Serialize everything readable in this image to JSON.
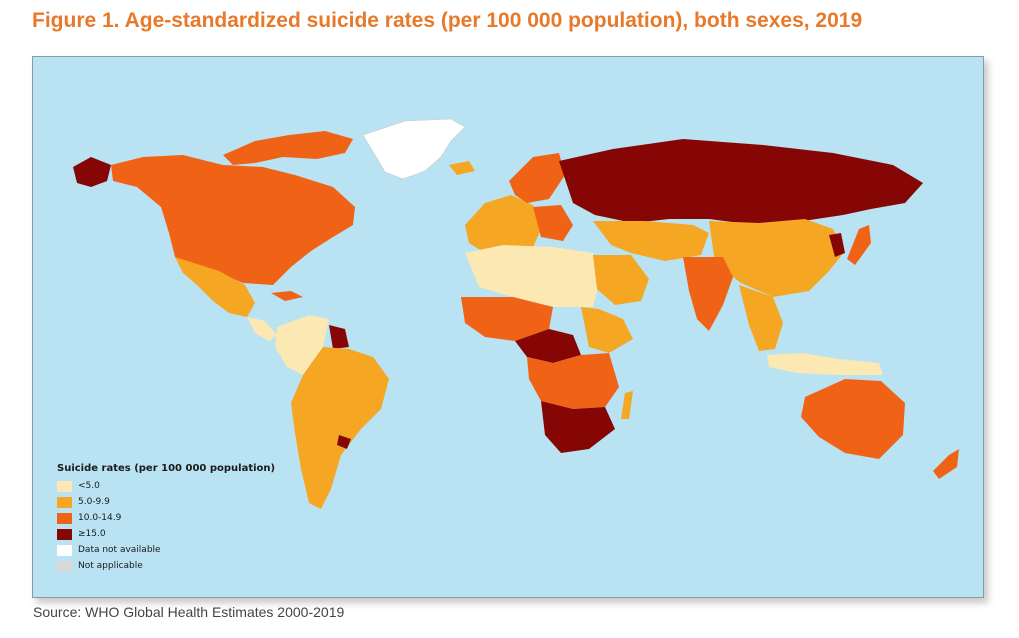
{
  "title": "Figure 1. Age-standardized suicide rates (per 100 000 population), both sexes, 2019",
  "source": "Source: WHO Global Health Estimates 2000-2019",
  "colors": {
    "ocean": "#b9e3f2",
    "lt5": "#fbe8b2",
    "r5_9": "#f5a623",
    "r10_14": "#f06317",
    "ge15": "#860505",
    "na": "#ffffff",
    "notapp": "#d9d9d9",
    "title": "#e8792a"
  },
  "legend": {
    "title": "Suicide rates (per 100 000 population)",
    "items": [
      {
        "label": "<5.0",
        "color": "#fbe8b2"
      },
      {
        "label": "5.0-9.9",
        "color": "#f5a623"
      },
      {
        "label": "10.0-14.9",
        "color": "#f06317"
      },
      {
        "label": "≥15.0",
        "color": "#860505"
      },
      {
        "label": "Data not available",
        "color": "#ffffff"
      },
      {
        "label": "Not applicable",
        "color": "#d9d9d9"
      }
    ]
  }
}
